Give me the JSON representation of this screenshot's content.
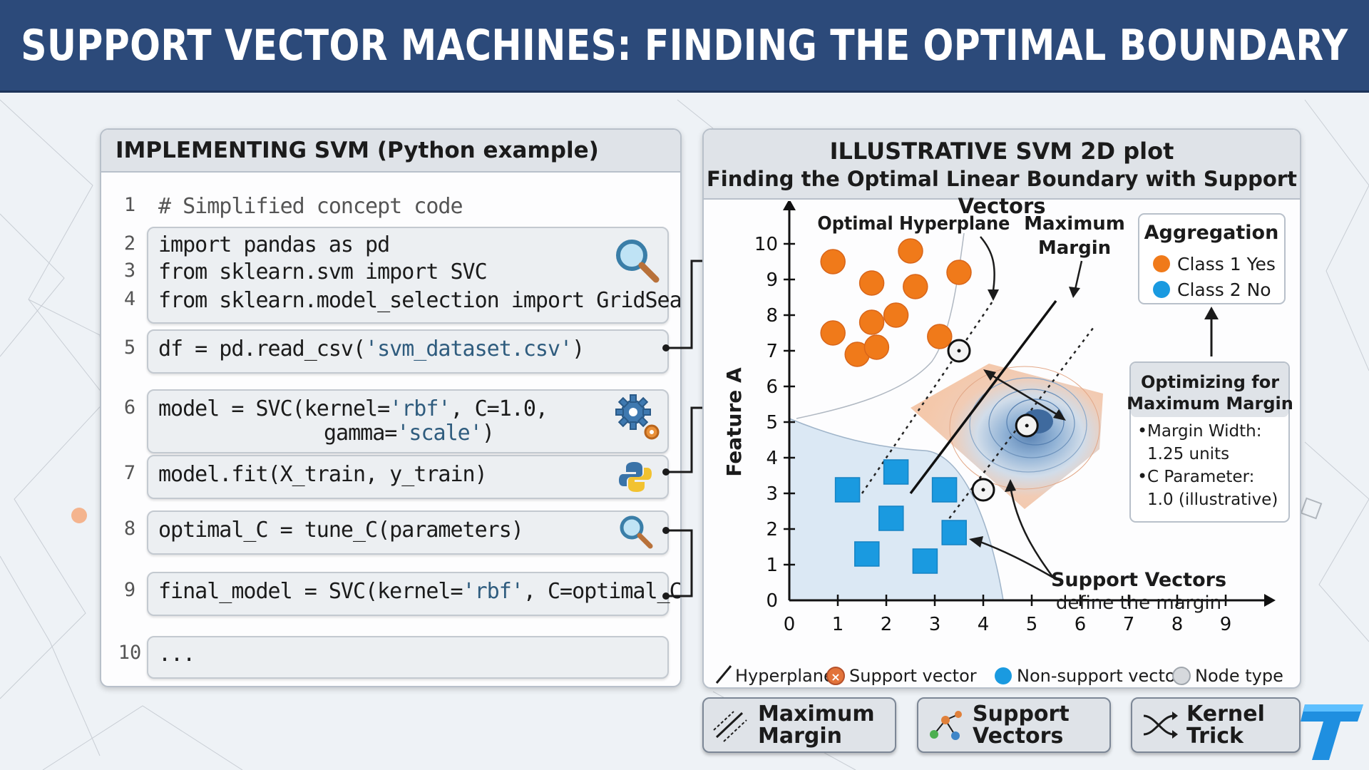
{
  "header": {
    "title": "SUPPORT VECTOR MACHINES: FINDING THE OPTIMAL BOUNDARY"
  },
  "code_panel": {
    "title": "IMPLEMENTING SVM (Python example)",
    "lines": [
      {
        "num": "1",
        "text": "# Simplified concept code"
      },
      {
        "num": "2",
        "text": "import pandas as pd"
      },
      {
        "num": "3",
        "text": "from sklearn.svm import SVC"
      },
      {
        "num": "4",
        "text": "from sklearn.model_selection import GridSearchCV"
      },
      {
        "num": "5",
        "text_pre": "df = pd.read_csv(",
        "text_str": "'svm_dataset.csv'",
        "text_post": ")"
      },
      {
        "num": "6",
        "text_pre": "model = SVC(kernel=",
        "text_str": "'rbf'",
        "text_post": ", C=1.0,",
        "text2_pre": "gamma=",
        "text2_str": "'scale'",
        "text2_post": ")"
      },
      {
        "num": "7",
        "text": "model.fit(X_train, y_train)"
      },
      {
        "num": "8",
        "text": "optimal_C = tune_C(parameters)"
      },
      {
        "num": "9",
        "text_pre": "final_model = SVC(kernel=",
        "text_str": "'rbf'",
        "text_post": ", C=optimal_C)"
      },
      {
        "num": "10",
        "text": "..."
      }
    ],
    "icons": [
      "magnifier-icon",
      "gear-icon",
      "python-icon",
      "magnifier-icon"
    ]
  },
  "plot_panel": {
    "title": "ILLUSTRATIVE SVM 2D plot",
    "subtitle": "Finding the Optimal Linear Boundary with Support Vectors",
    "labels": {
      "optimal_hyperplane": "Optimal Hyperplane",
      "maximum_margin_1": "Maximum",
      "maximum_margin_2": "Margin",
      "support_vectors_1": "Support Vectors",
      "support_vectors_2": "define the margin"
    },
    "aggregation": {
      "title": "Aggregation",
      "items": [
        "Class 1 Yes",
        "Class 2 No"
      ]
    },
    "optimizing": {
      "title_1": "Optimizing for",
      "title_2": "Maximum Margin",
      "lines": [
        "Margin Width:",
        "1.25 units",
        "C Parameter:",
        "1.0 (illustrative)"
      ]
    },
    "legend": [
      "Hyperplane",
      "Support vector",
      "Non-support vector",
      "Node type"
    ]
  },
  "chart_data": {
    "type": "scatter",
    "title": "ILLUSTRATIVE SVM 2D plot",
    "subtitle": "Finding the Optimal Linear Boundary with Support Vectors",
    "xlabel": "",
    "ylabel": "Feature A",
    "xlim": [
      0,
      9.5
    ],
    "ylim": [
      0,
      10.5
    ],
    "xticks": [
      0,
      1,
      2,
      3,
      4,
      5,
      6,
      7,
      8,
      9
    ],
    "yticks": [
      0,
      1,
      2,
      3,
      4,
      5,
      6,
      7,
      8,
      9,
      10
    ],
    "series": [
      {
        "name": "Class 1 Yes",
        "color": "#f07a1a",
        "marker": "circle",
        "points": [
          [
            0.9,
            9.5
          ],
          [
            2.5,
            9.8
          ],
          [
            1.7,
            8.9
          ],
          [
            2.6,
            8.8
          ],
          [
            3.5,
            9.2
          ],
          [
            0.9,
            7.5
          ],
          [
            1.7,
            7.8
          ],
          [
            2.2,
            8.0
          ],
          [
            3.1,
            7.4
          ],
          [
            1.4,
            6.9
          ],
          [
            1.8,
            7.1
          ]
        ]
      },
      {
        "name": "Class 2 No",
        "color": "#1a9ae0",
        "marker": "square",
        "points": [
          [
            1.2,
            3.1
          ],
          [
            2.2,
            3.6
          ],
          [
            3.2,
            3.1
          ],
          [
            2.1,
            2.3
          ],
          [
            3.4,
            1.9
          ],
          [
            1.6,
            1.3
          ],
          [
            2.8,
            1.1
          ]
        ]
      },
      {
        "name": "Support vector",
        "marker": "ring",
        "points": [
          [
            3.5,
            7.0
          ],
          [
            4.9,
            4.9
          ],
          [
            4.0,
            3.1
          ]
        ]
      }
    ],
    "hyperplane": [
      [
        2.5,
        3.0
      ],
      [
        5.5,
        8.4
      ]
    ],
    "margins": [
      [
        [
          1.5,
          3.0
        ],
        [
          4.2,
          8.4
        ]
      ],
      [
        [
          3.3,
          2.3
        ],
        [
          6.3,
          7.7
        ]
      ]
    ],
    "legend_position": "bottom"
  },
  "buttons": [
    {
      "label": "Maximum Margin",
      "icon": "margin-icon"
    },
    {
      "label": "Support Vectors",
      "icon": "vectors-icon"
    },
    {
      "label": "Kernel Trick",
      "icon": "shuffle-icon"
    }
  ],
  "logo": {
    "letter": "T"
  }
}
